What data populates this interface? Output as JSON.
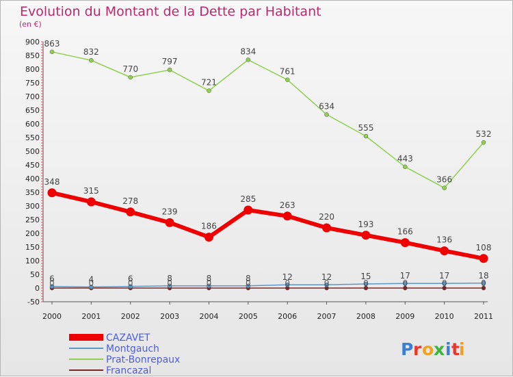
{
  "chart_data": {
    "type": "line",
    "title": "Evolution du Montant de la Dette par Habitant",
    "subtitle": "(en €)",
    "x": [
      "2000",
      "2001",
      "2002",
      "2003",
      "2004",
      "2005",
      "2006",
      "2007",
      "2008",
      "2009",
      "2010",
      "2011"
    ],
    "ylim": [
      -50,
      900
    ],
    "yticks": [
      -50,
      0,
      50,
      100,
      150,
      200,
      250,
      300,
      350,
      400,
      450,
      500,
      550,
      600,
      650,
      700,
      750,
      800,
      850,
      900
    ],
    "grid": false,
    "legend_position": "bottom-left",
    "series": [
      {
        "name": "CAZAVET",
        "color": "#ee0000",
        "values": [
          348,
          315,
          278,
          239,
          186,
          285,
          263,
          220,
          193,
          166,
          136,
          108
        ],
        "labels": [
          "348",
          "315",
          "278",
          "239",
          "186",
          "285",
          "263",
          "220",
          "193",
          "166",
          "136",
          "108"
        ]
      },
      {
        "name": "Montgauch",
        "color": "#5b97c6",
        "values": [
          6,
          4,
          6,
          8,
          8,
          8,
          12,
          12,
          15,
          17,
          17,
          18
        ],
        "labels": [
          "6",
          "4",
          "6",
          "8",
          "8",
          "8",
          "12",
          "12",
          "15",
          "17",
          "17",
          "18"
        ]
      },
      {
        "name": "Prat-Bonrepaux",
        "color": "#8ed04e",
        "values": [
          863,
          832,
          770,
          797,
          721,
          834,
          761,
          634,
          555,
          443,
          366,
          532
        ],
        "labels": [
          "863",
          "832",
          "770",
          "797",
          "721",
          "834",
          "761",
          "634",
          "555",
          "443",
          "366",
          "532"
        ]
      },
      {
        "name": "Francazal",
        "color": "#7a2626",
        "values": [
          0,
          0,
          0,
          0,
          0,
          0,
          0,
          0,
          0,
          0,
          0,
          0
        ],
        "labels": [
          "0",
          "0",
          "0",
          "0",
          "0",
          "0",
          "0",
          "0",
          "0",
          "0",
          "0",
          "0"
        ]
      }
    ]
  },
  "logo": {
    "text": "Proxiti",
    "letters": [
      "P",
      "r",
      "o",
      "x",
      "i",
      "t",
      "i"
    ],
    "colors": [
      "#3a7fd5",
      "#e8382d",
      "#f0a022",
      "#3ab53a",
      "#3a7fd5",
      "#e8382d",
      "#f0a022"
    ]
  }
}
